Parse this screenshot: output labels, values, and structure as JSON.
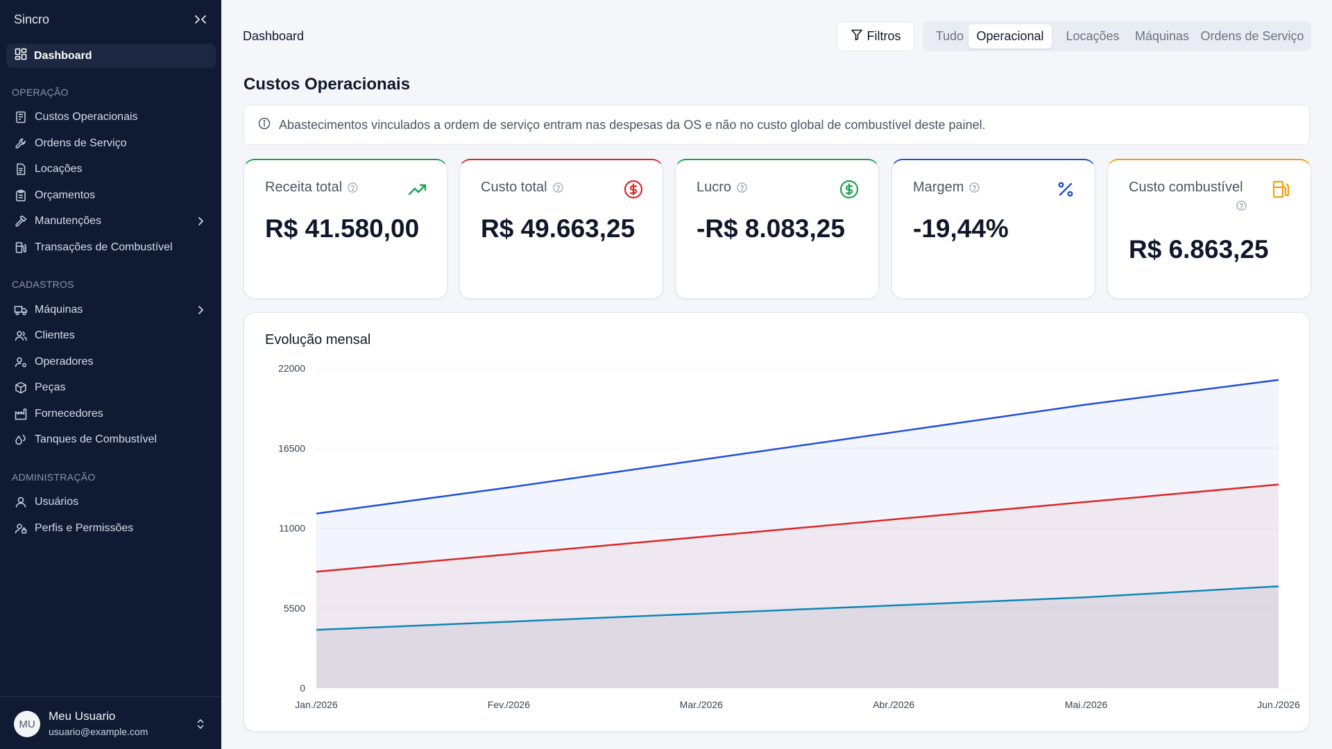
{
  "app": {
    "title": "Sincro"
  },
  "sidebar": {
    "active": {
      "label": "Dashboard",
      "icon": "dashboard-icon"
    },
    "sections": [
      {
        "title": "OPERAÇÃO",
        "items": [
          {
            "label": "Custos Operacionais",
            "icon": "receipt-icon"
          },
          {
            "label": "Ordens de Serviço",
            "icon": "wrench-icon"
          },
          {
            "label": "Locações",
            "icon": "document-icon"
          },
          {
            "label": "Orçamentos",
            "icon": "clipboard-icon"
          },
          {
            "label": "Manutenções",
            "icon": "hammer-icon",
            "expandable": true
          },
          {
            "label": "Transações de Combustível",
            "icon": "fuel-icon"
          }
        ]
      },
      {
        "title": "CADASTROS",
        "items": [
          {
            "label": "Máquinas",
            "icon": "truck-icon",
            "expandable": true
          },
          {
            "label": "Clientes",
            "icon": "users-icon"
          },
          {
            "label": "Operadores",
            "icon": "user-cog-icon"
          },
          {
            "label": "Peças",
            "icon": "package-icon"
          },
          {
            "label": "Fornecedores",
            "icon": "factory-icon"
          },
          {
            "label": "Tanques de Combustível",
            "icon": "droplets-icon"
          }
        ]
      },
      {
        "title": "ADMINISTRAÇÃO",
        "items": [
          {
            "label": "Usuários",
            "icon": "user-icon"
          },
          {
            "label": "Perfis e Permissões",
            "icon": "user-lock-icon"
          }
        ]
      }
    ],
    "user": {
      "initials": "MU",
      "name": "Meu Usuario",
      "email": "usuario@example.com"
    }
  },
  "header": {
    "breadcrumb": "Dashboard",
    "filter_label": "Filtros",
    "tabs": [
      "Tudo",
      "Operacional",
      "Locações",
      "Máquinas",
      "Ordens de Serviço"
    ],
    "active_tab": "Operacional"
  },
  "main": {
    "title": "Custos Operacionais",
    "info": "Abastecimentos vinculados a ordem de serviço entram nas despesas da OS e não no custo global de combustível deste painel.",
    "kpis": [
      {
        "label": "Receita total",
        "value": "R$ 41.580,00",
        "icon": "trending-up-icon",
        "color": "#16a34a"
      },
      {
        "label": "Custo total",
        "value": "R$ 49.663,25",
        "icon": "dollar-circle-icon",
        "color": "#dc2626"
      },
      {
        "label": "Lucro",
        "value": "-R$ 8.083,25",
        "icon": "dollar-circle-icon",
        "color": "#16a34a"
      },
      {
        "label": "Margem",
        "value": "-19,44%",
        "icon": "percent-icon",
        "color": "#1d4ed8"
      },
      {
        "label": "Custo combustível",
        "value": "R$ 6.863,25",
        "icon": "fuel-pump-icon",
        "color": "#f59e0b"
      }
    ]
  },
  "chart_data": {
    "type": "area",
    "title": "Evolução mensal",
    "categories": [
      "Jan./2026",
      "Fev./2026",
      "Mar./2026",
      "Abr./2026",
      "Mai./2026",
      "Jun./2026"
    ],
    "ylim": [
      0,
      22000
    ],
    "yticks": [
      0,
      5500,
      11000,
      16500,
      22000
    ],
    "grid": true,
    "series": [
      {
        "values": [
          12000,
          13800,
          15700,
          17600,
          19500,
          21200
        ],
        "color": "#1d4ed8"
      },
      {
        "values": [
          8000,
          9200,
          10400,
          11600,
          12800,
          14000
        ],
        "color": "#dc2626"
      },
      {
        "values": [
          4000,
          4560,
          5120,
          5680,
          6240,
          7000
        ],
        "color": "#0e86b5"
      }
    ]
  }
}
